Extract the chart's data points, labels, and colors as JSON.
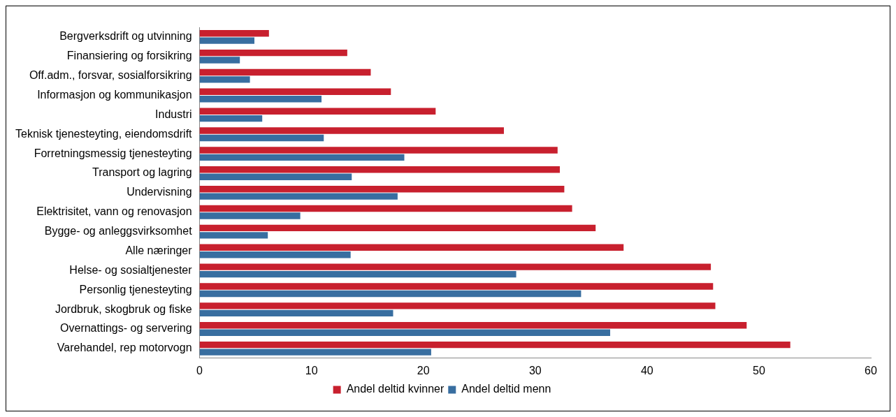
{
  "chart_data": {
    "type": "bar",
    "orientation": "horizontal",
    "categories": [
      "Bergverksdrift og utvinning",
      "Finansiering og forsikring",
      "Off.adm., forsvar, sosialforsikring",
      "Informasjon og kommunikasjon",
      "Industri",
      "Teknisk tjenesteyting, eiendomsdrift",
      "Forretningsmessig tjenesteyting",
      "Transport og lagring",
      "Undervisning",
      "Elektrisitet, vann og renovasjon",
      "Bygge- og anleggsvirksomhet",
      "Alle næringer",
      "Helse- og sosialtjenester",
      "Personlig tjenesteyting",
      "Jordbruk, skogbruk og fiske",
      "Overnattings- og servering",
      "Varehandel, rep motorvogn"
    ],
    "series": [
      {
        "name": "Andel deltid kvinner",
        "color": "#c8202e",
        "values": [
          6.2,
          13.2,
          15.3,
          17.1,
          21.1,
          27.2,
          32.0,
          32.2,
          32.6,
          33.3,
          35.4,
          37.9,
          45.7,
          45.9,
          46.1,
          48.9,
          52.8
        ]
      },
      {
        "name": "Andel deltid menn",
        "color": "#386ea0",
        "values": [
          4.9,
          3.6,
          4.5,
          10.9,
          5.6,
          11.1,
          18.3,
          13.6,
          17.7,
          9.0,
          6.1,
          13.5,
          28.3,
          34.1,
          17.3,
          36.7,
          20.7
        ]
      }
    ],
    "xlim": [
      0,
      60
    ],
    "xticks": [
      0,
      10,
      20,
      30,
      40,
      50,
      60
    ],
    "grid": false,
    "legend": "bottom"
  }
}
